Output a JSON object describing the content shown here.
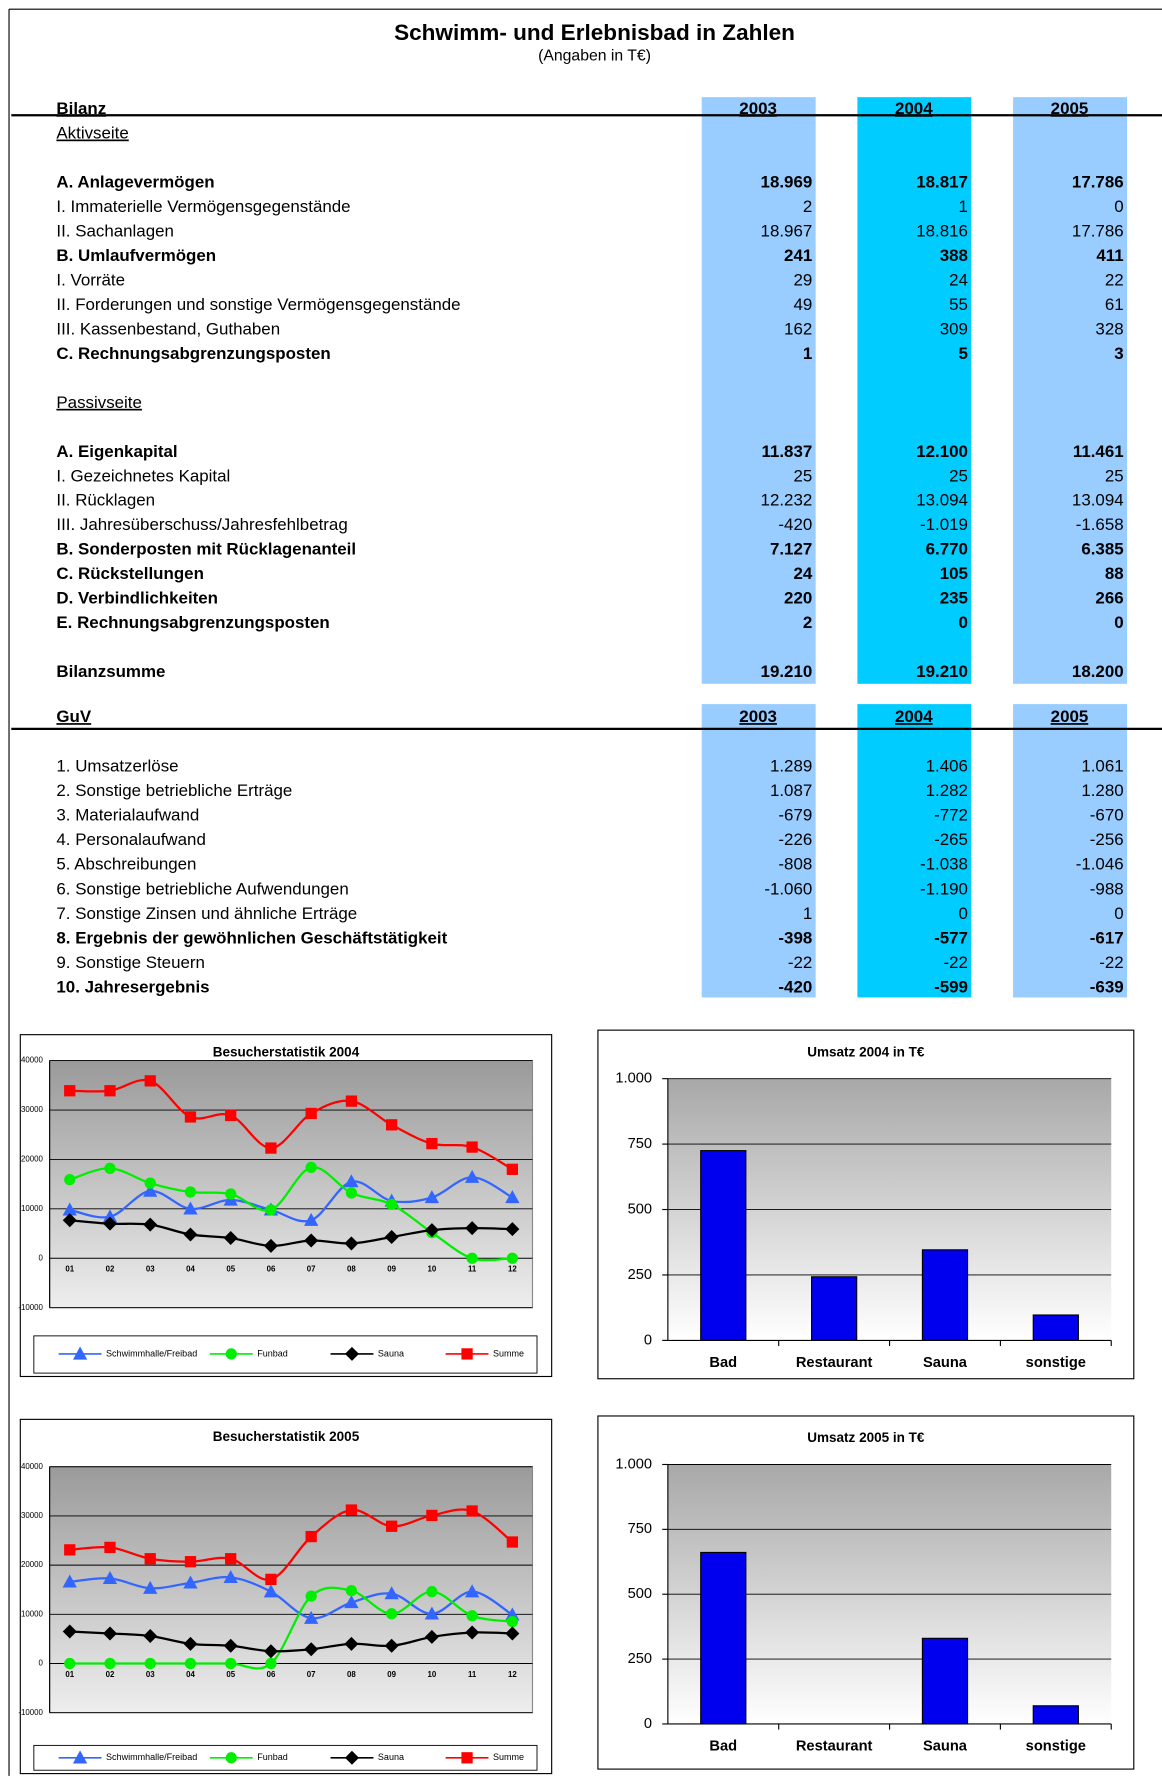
{
  "title": "Schwimm- und Erlebnisbad in Zahlen",
  "subtitle": "(Angaben in T€)",
  "band_colors": [
    "#99ccff",
    "#00ccff",
    "#99ccff"
  ],
  "bilanz": {
    "header": "Bilanz",
    "years": [
      "2003",
      "2004",
      "2005"
    ],
    "rows": [
      {
        "label": "Aktivseite",
        "underline": true
      },
      {
        "label": "A. Anlagevermögen",
        "values": [
          "18.969",
          "18.817",
          "17.786"
        ],
        "bold": true
      },
      {
        "label": "I. Immaterielle Vermögensgegenstände",
        "values": [
          "2",
          "1",
          "0"
        ]
      },
      {
        "label": "II. Sachanlagen",
        "values": [
          "18.967",
          "18.816",
          "17.786"
        ]
      },
      {
        "label": "B. Umlaufvermögen",
        "values": [
          "241",
          "388",
          "411"
        ],
        "bold": true
      },
      {
        "label": "I. Vorräte",
        "values": [
          "29",
          "24",
          "22"
        ]
      },
      {
        "label": "II. Forderungen und sonstige Vermögensgegenstände",
        "values": [
          "49",
          "55",
          "61"
        ]
      },
      {
        "label": "III. Kassenbestand, Guthaben",
        "values": [
          "162",
          "309",
          "328"
        ]
      },
      {
        "label": "C. Rechnungsabgrenzungsposten",
        "values": [
          "1",
          "5",
          "3"
        ],
        "bold": true
      },
      {
        "label": "Passivseite",
        "underline": true
      },
      {
        "label": "A. Eigenkapital",
        "values": [
          "11.837",
          "12.100",
          "11.461"
        ],
        "bold": true
      },
      {
        "label": "I. Gezeichnetes Kapital",
        "values": [
          "25",
          "25",
          "25"
        ]
      },
      {
        "label": "II. Rücklagen",
        "values": [
          "12.232",
          "13.094",
          "13.094"
        ]
      },
      {
        "label": "III. Jahresüberschuss/Jahresfehlbetrag",
        "values": [
          "-420",
          "-1.019",
          "-1.658"
        ]
      },
      {
        "label": "B. Sonderposten mit Rücklagenanteil",
        "values": [
          "7.127",
          "6.770",
          "6.385"
        ],
        "bold": true
      },
      {
        "label": "C. Rückstellungen",
        "values": [
          "24",
          "105",
          "88"
        ],
        "bold": true
      },
      {
        "label": "D. Verbindlichkeiten",
        "values": [
          "220",
          "235",
          "266"
        ],
        "bold": true
      },
      {
        "label": "E. Rechnungsabgrenzungsposten",
        "values": [
          "2",
          "0",
          "0"
        ],
        "bold": true
      },
      {
        "label": "Bilanzsumme",
        "values": [
          "19.210",
          "19.210",
          "18.200"
        ],
        "bold": true
      }
    ]
  },
  "guv": {
    "header": "GuV",
    "years": [
      "2003",
      "2004",
      "2005"
    ],
    "rows": [
      {
        "label": "1. Umsatzerlöse",
        "values": [
          "1.289",
          "1.406",
          "1.061"
        ]
      },
      {
        "label": "2. Sonstige betriebliche Erträge",
        "values": [
          "1.087",
          "1.282",
          "1.280"
        ]
      },
      {
        "label": "3. Materialaufwand",
        "values": [
          "-679",
          "-772",
          "-670"
        ]
      },
      {
        "label": "4. Personalaufwand",
        "values": [
          "-226",
          "-265",
          "-256"
        ]
      },
      {
        "label": "5. Abschreibungen",
        "values": [
          "-808",
          "-1.038",
          "-1.046"
        ]
      },
      {
        "label": "6. Sonstige betriebliche Aufwendungen",
        "values": [
          "-1.060",
          "-1.190",
          "-988"
        ]
      },
      {
        "label": "7. Sonstige Zinsen und ähnliche Erträge",
        "values": [
          "1",
          "0",
          "0"
        ]
      },
      {
        "label": "8. Ergebnis der gewöhnlichen Geschäftstätigkeit",
        "values": [
          "-398",
          "-577",
          "-617"
        ],
        "bold": true
      },
      {
        "label": "9. Sonstige Steuern",
        "values": [
          "-22",
          "-22",
          "-22"
        ]
      },
      {
        "label": "10. Jahresergebnis",
        "values": [
          "-420",
          "-599",
          "-639"
        ],
        "bold": true
      }
    ]
  },
  "chart_data": [
    {
      "type": "line",
      "title": "Besucherstatistik 2004",
      "categories": [
        "01",
        "02",
        "03",
        "04",
        "05",
        "06",
        "07",
        "08",
        "09",
        "10",
        "11",
        "12"
      ],
      "series": [
        {
          "name": "Schwimmhalle/Freibad",
          "color": "#3366ff",
          "marker": "triangle",
          "values": [
            9800,
            8400,
            13600,
            10000,
            11800,
            9800,
            7700,
            15500,
            11600,
            12300,
            16400,
            12300
          ]
        },
        {
          "name": "Funbad",
          "color": "#00ee00",
          "marker": "circle",
          "values": [
            15900,
            18200,
            15200,
            13400,
            13000,
            9800,
            18400,
            13200,
            10900,
            5200,
            0,
            0
          ]
        },
        {
          "name": "Sauna",
          "color": "#000000",
          "marker": "diamond",
          "values": [
            7700,
            7000,
            6800,
            4800,
            4100,
            2500,
            3600,
            3000,
            4300,
            5700,
            6100,
            5900
          ]
        },
        {
          "name": "Summe",
          "color": "#ff0000",
          "marker": "square",
          "values": [
            33900,
            33900,
            35900,
            28600,
            28900,
            22300,
            29300,
            31800,
            27000,
            23200,
            22500,
            18000
          ]
        }
      ],
      "ylim": [
        -10000,
        40000
      ],
      "yticks": [
        -10000,
        0,
        10000,
        20000,
        30000,
        40000
      ],
      "grid": true,
      "legend": "bottom"
    },
    {
      "type": "bar",
      "title": "Umsatz 2004 in T€",
      "categories": [
        "Bad",
        "Restaurant",
        "Sauna",
        "sonstige"
      ],
      "values": [
        725,
        243,
        346,
        97
      ],
      "color": "#0000ee",
      "ylim": [
        0,
        1000
      ],
      "yticks": [
        0,
        250,
        500,
        750,
        {
          "value": 1000,
          "label": "1.000"
        }
      ],
      "grid": true
    },
    {
      "type": "line",
      "title": "Besucherstatistik 2005",
      "categories": [
        "01",
        "02",
        "03",
        "04",
        "05",
        "06",
        "07",
        "08",
        "09",
        "10",
        "11",
        "12"
      ],
      "series": [
        {
          "name": "Schwimmhalle/Freibad",
          "color": "#3366ff",
          "marker": "triangle",
          "values": [
            16600,
            17300,
            15300,
            16400,
            17500,
            14600,
            9200,
            12400,
            14200,
            10100,
            14600,
            9900
          ]
        },
        {
          "name": "Funbad",
          "color": "#00ee00",
          "marker": "circle",
          "values": [
            0,
            0,
            0,
            0,
            0,
            0,
            13700,
            14800,
            10100,
            14600,
            9700,
            8500
          ]
        },
        {
          "name": "Sauna",
          "color": "#000000",
          "marker": "diamond",
          "values": [
            6500,
            6100,
            5600,
            4000,
            3600,
            2500,
            2900,
            4000,
            3600,
            5400,
            6300,
            6100
          ]
        },
        {
          "name": "Summe",
          "color": "#ff0000",
          "marker": "square",
          "values": [
            23100,
            23600,
            21300,
            20700,
            21300,
            17100,
            25800,
            31200,
            27900,
            30100,
            31000,
            24700
          ]
        }
      ],
      "ylim": [
        -10000,
        40000
      ],
      "yticks": [
        -10000,
        0,
        10000,
        20000,
        30000,
        40000
      ],
      "grid": true,
      "legend": "bottom"
    },
    {
      "type": "bar",
      "title": "Umsatz 2005 in T€",
      "categories": [
        "Bad",
        "Restaurant",
        "Sauna",
        "sonstige"
      ],
      "values": [
        661,
        0,
        330,
        70
      ],
      "color": "#0000ee",
      "ylim": [
        0,
        1000
      ],
      "yticks": [
        0,
        250,
        500,
        750,
        {
          "value": 1000,
          "label": "1.000"
        }
      ],
      "grid": true
    }
  ]
}
